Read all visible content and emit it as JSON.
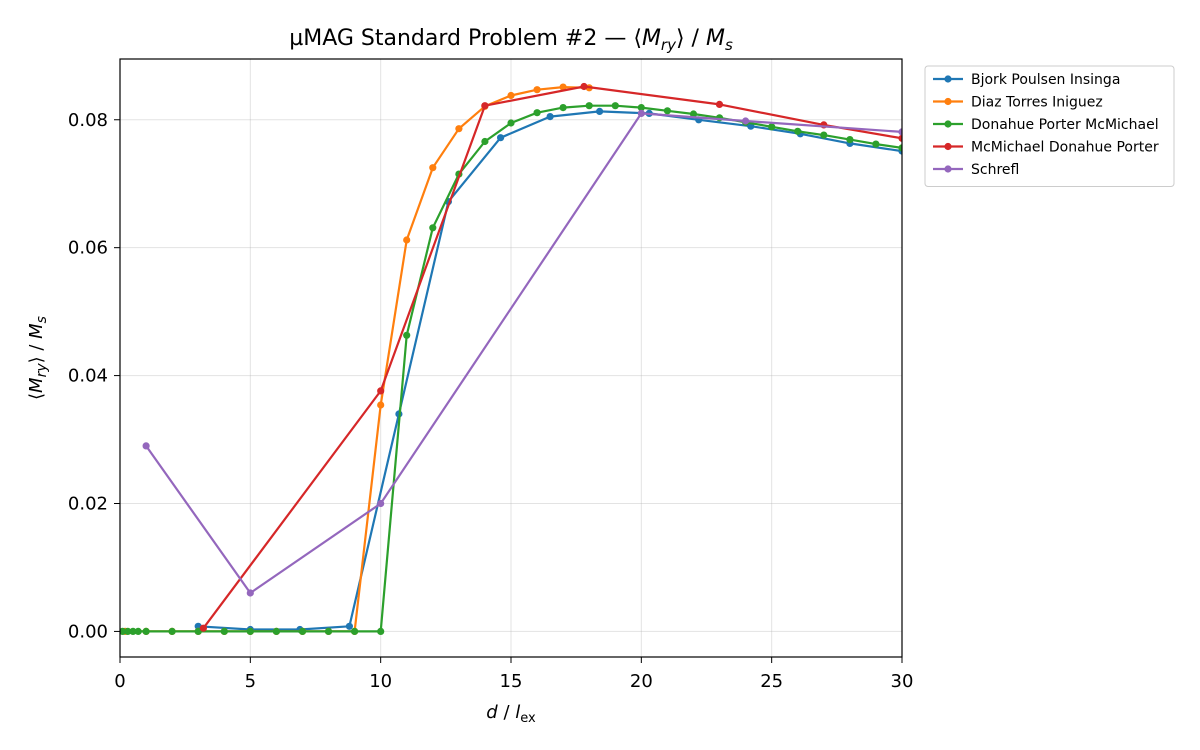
{
  "chart_data": {
    "type": "line",
    "title": "µMAG Standard Problem #2 — ⟨M_ry⟩ / M_s",
    "title_parts": {
      "pre": "µMAG Standard Problem #2 — ⟨",
      "M": "M",
      "sub": "ry",
      "post": "⟩ / ",
      "M2": "M",
      "sub2": "s"
    },
    "xlabel": "d / l_ex",
    "xlabel_parts": {
      "d": "d",
      "sep": " / ",
      "l": "l",
      "sub": "ex"
    },
    "ylabel": "⟨M_ry⟩ / M_s",
    "ylabel_parts": {
      "pre": "⟨",
      "M": "M",
      "sub": "ry",
      "post": "⟩ / ",
      "M2": "M",
      "sub2": "s"
    },
    "xlim": [
      0,
      30
    ],
    "ylim": [
      -0.004,
      0.0895
    ],
    "xticks": [
      "0",
      "5",
      "10",
      "15",
      "20",
      "25",
      "30"
    ],
    "yticks": [
      "0.00",
      "0.02",
      "0.04",
      "0.06",
      "0.08"
    ],
    "grid": true,
    "legend_position": "outside-top-right",
    "series": [
      {
        "name": "Bjork Poulsen Insinga",
        "color": "#1f77b4",
        "x": [
          3.0,
          5.0,
          6.9,
          8.8,
          10.7,
          12.6,
          14.6,
          16.5,
          18.4,
          20.3,
          22.2,
          24.2,
          26.1,
          28.0,
          30.0
        ],
        "y": [
          0.0008,
          0.0003,
          0.0003,
          0.0008,
          0.034,
          0.0672,
          0.0772,
          0.0805,
          0.0813,
          0.081,
          0.08,
          0.079,
          0.0778,
          0.0763,
          0.0751
        ]
      },
      {
        "name": "Diaz Torres Iniguez",
        "color": "#ff7f0e",
        "x": [
          0.2,
          1.0,
          2.0,
          3.0,
          4.0,
          5.0,
          6.0,
          7.0,
          8.0,
          9.0,
          10.0,
          11.0,
          12.0,
          13.0,
          14.0,
          15.0,
          16.0,
          17.0,
          18.0
        ],
        "y": [
          0,
          0,
          0,
          0,
          0,
          0,
          0,
          0,
          0,
          0,
          0.0354,
          0.0612,
          0.0725,
          0.0786,
          0.0821,
          0.0838,
          0.0847,
          0.0851,
          0.085
        ]
      },
      {
        "name": "Donahue Porter McMichael",
        "color": "#2ca02c",
        "x": [
          0.1,
          0.3,
          0.5,
          0.7,
          1.0,
          2.0,
          3.0,
          4.0,
          5.0,
          6.0,
          7.0,
          8.0,
          9.0,
          10.0,
          11.0,
          12.0,
          13.0,
          14.0,
          15.0,
          16.0,
          17.0,
          18.0,
          19.0,
          20.0,
          21.0,
          22.0,
          23.0,
          24.0,
          25.0,
          26.0,
          27.0,
          28.0,
          29.0,
          30.0
        ],
        "y": [
          0,
          0,
          0,
          0,
          0,
          0,
          0,
          0,
          0,
          0,
          0,
          0,
          0,
          0,
          0.0463,
          0.0631,
          0.0715,
          0.0766,
          0.0795,
          0.0811,
          0.0819,
          0.0822,
          0.0822,
          0.0819,
          0.0814,
          0.0809,
          0.0803,
          0.0796,
          0.0789,
          0.0782,
          0.0776,
          0.0769,
          0.0762,
          0.0756
        ]
      },
      {
        "name": "McMichael Donahue Porter",
        "color": "#d62728",
        "x": [
          3.2,
          10.0,
          14.0,
          17.8,
          23.0,
          27.0,
          30.0
        ],
        "y": [
          0.0005,
          0.0376,
          0.0822,
          0.0852,
          0.0824,
          0.0792,
          0.0771
        ]
      },
      {
        "name": "Schrefl",
        "color": "#9467bd",
        "x": [
          1.0,
          5.0,
          10.0,
          20.0,
          24.0,
          30.0
        ],
        "y": [
          0.029,
          0.006,
          0.02,
          0.081,
          0.0798,
          0.0781
        ]
      }
    ]
  }
}
